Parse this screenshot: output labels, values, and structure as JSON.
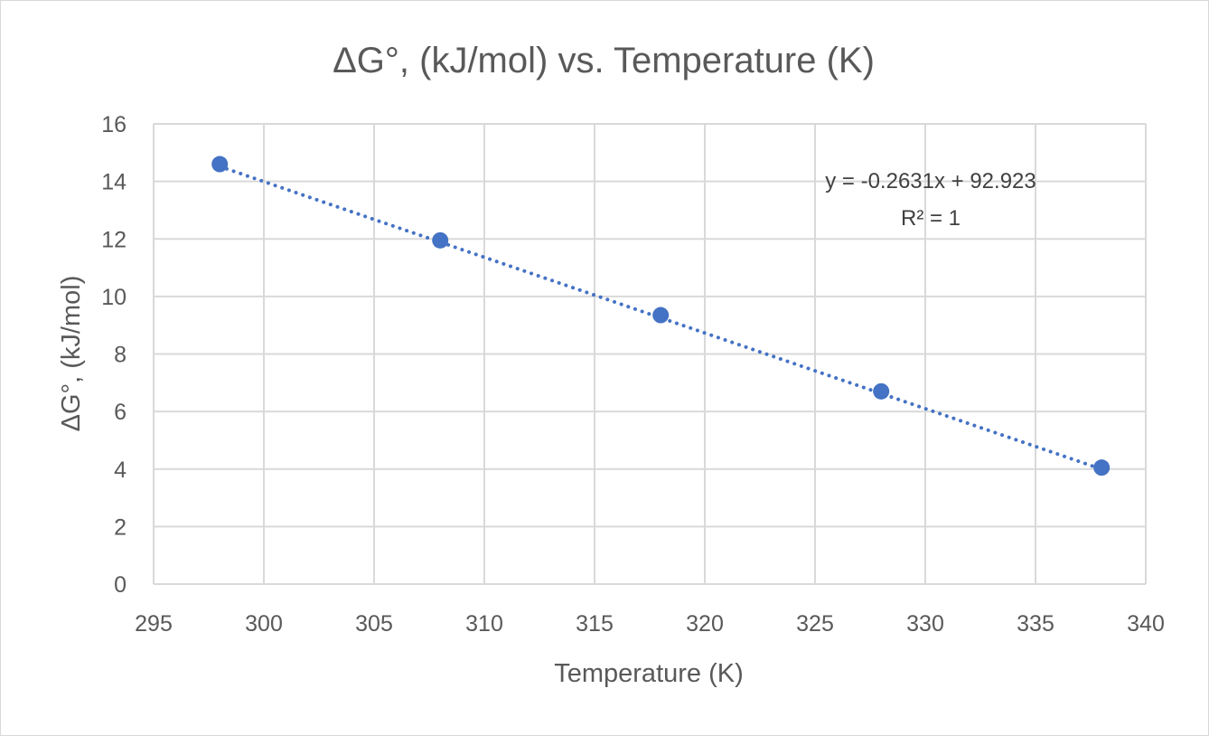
{
  "chart_data": {
    "type": "scatter",
    "title": "ΔG°, (kJ/mol) vs. Temperature (K)",
    "xlabel": "Temperature (K)",
    "ylabel": "ΔG°, (kJ/mol)",
    "xlim": [
      295,
      340
    ],
    "ylim": [
      0,
      16
    ],
    "x_ticks": [
      295,
      300,
      305,
      310,
      315,
      320,
      325,
      330,
      335,
      340
    ],
    "y_ticks": [
      0,
      2,
      4,
      6,
      8,
      10,
      12,
      14,
      16
    ],
    "grid": true,
    "legend": "none",
    "series": [
      {
        "color": "#4472C4",
        "x": [
          298,
          308,
          318,
          328,
          338
        ],
        "y": [
          14.6,
          11.95,
          9.35,
          6.7,
          4.05
        ]
      }
    ],
    "trendline": {
      "type": "linear",
      "style": "dotted",
      "color": "#4472C4",
      "slope": -0.2631,
      "intercept": 92.923,
      "equation_label": "y = -0.2631x + 92.923",
      "r2_label": "R² = 1"
    }
  }
}
